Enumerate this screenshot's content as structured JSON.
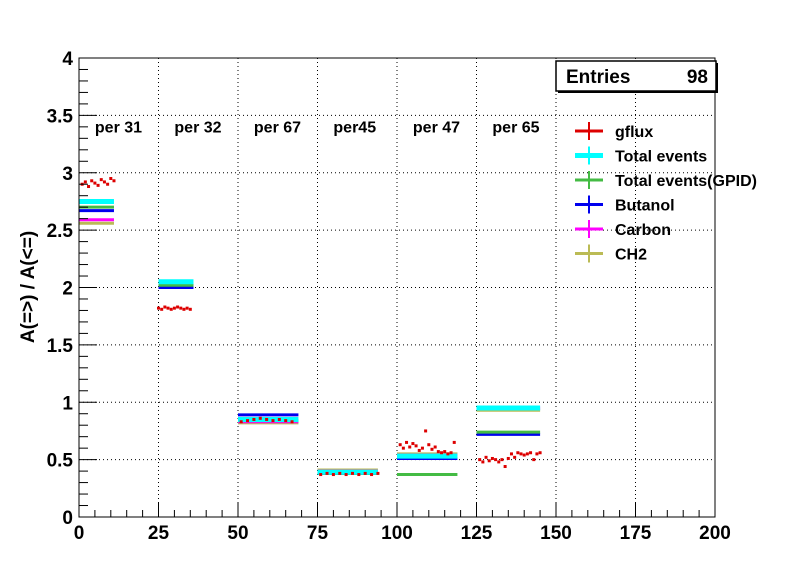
{
  "chart_data": {
    "type": "scatter",
    "ylabel": "A(=>) / A(<=)",
    "xlim": [
      0,
      200
    ],
    "ylim": [
      0,
      4
    ],
    "x_ticks": [
      "0",
      "25",
      "50",
      "75",
      "100",
      "125",
      "150",
      "175",
      "200"
    ],
    "y_ticks": [
      "0",
      "0.5",
      "1",
      "1.5",
      "2",
      "2.5",
      "3",
      "3.5",
      "4"
    ],
    "grid": true,
    "stats_box": {
      "label": "Entries",
      "value": "98"
    },
    "period_labels": [
      {
        "text": "per 31",
        "x": 5
      },
      {
        "text": "per 32",
        "x": 30
      },
      {
        "text": "per 67",
        "x": 55
      },
      {
        "text": "per45",
        "x": 80
      },
      {
        "text": "per 47",
        "x": 105
      },
      {
        "text": "per 65",
        "x": 130
      }
    ],
    "legend_placement": "right",
    "series": [
      {
        "name": "gflux",
        "color": "#dd0000",
        "kind": "points",
        "points": [
          [
            1,
            2.9
          ],
          [
            2,
            2.92
          ],
          [
            3,
            2.88
          ],
          [
            4,
            2.93
          ],
          [
            5,
            2.91
          ],
          [
            6,
            2.89
          ],
          [
            7,
            2.94
          ],
          [
            8,
            2.92
          ],
          [
            9,
            2.9
          ],
          [
            10,
            2.95
          ],
          [
            11,
            2.93
          ],
          [
            25,
            1.82
          ],
          [
            26,
            1.81
          ],
          [
            27,
            1.83
          ],
          [
            28,
            1.82
          ],
          [
            29,
            1.81
          ],
          [
            30,
            1.82
          ],
          [
            31,
            1.83
          ],
          [
            32,
            1.82
          ],
          [
            33,
            1.81
          ],
          [
            34,
            1.82
          ],
          [
            35,
            1.81
          ],
          [
            51,
            0.83
          ],
          [
            53,
            0.84
          ],
          [
            55,
            0.85
          ],
          [
            57,
            0.86
          ],
          [
            59,
            0.85
          ],
          [
            61,
            0.84
          ],
          [
            63,
            0.85
          ],
          [
            65,
            0.84
          ],
          [
            67,
            0.83
          ],
          [
            76,
            0.37
          ],
          [
            78,
            0.38
          ],
          [
            80,
            0.37
          ],
          [
            82,
            0.38
          ],
          [
            84,
            0.37
          ],
          [
            86,
            0.38
          ],
          [
            88,
            0.37
          ],
          [
            90,
            0.38
          ],
          [
            92,
            0.37
          ],
          [
            94,
            0.38
          ],
          [
            101,
            0.63
          ],
          [
            102,
            0.6
          ],
          [
            103,
            0.65
          ],
          [
            104,
            0.61
          ],
          [
            105,
            0.64
          ],
          [
            106,
            0.62
          ],
          [
            107,
            0.58
          ],
          [
            108,
            0.6
          ],
          [
            109,
            0.75
          ],
          [
            110,
            0.63
          ],
          [
            111,
            0.59
          ],
          [
            112,
            0.61
          ],
          [
            113,
            0.57
          ],
          [
            114,
            0.56
          ],
          [
            115,
            0.57
          ],
          [
            116,
            0.55
          ],
          [
            117,
            0.56
          ],
          [
            118,
            0.65
          ],
          [
            126,
            0.5
          ],
          [
            127,
            0.48
          ],
          [
            128,
            0.52
          ],
          [
            129,
            0.49
          ],
          [
            130,
            0.51
          ],
          [
            131,
            0.5
          ],
          [
            132,
            0.48
          ],
          [
            133,
            0.5
          ],
          [
            134,
            0.44
          ],
          [
            135,
            0.51
          ],
          [
            136,
            0.55
          ],
          [
            137,
            0.52
          ],
          [
            138,
            0.56
          ],
          [
            139,
            0.55
          ],
          [
            140,
            0.54
          ],
          [
            141,
            0.55
          ],
          [
            142,
            0.56
          ],
          [
            143,
            0.5
          ],
          [
            144,
            0.55
          ],
          [
            145,
            0.56
          ]
        ]
      },
      {
        "name": "Total events",
        "color": "#00ffff",
        "kind": "lines",
        "segments": [
          [
            0,
            11,
            2.75
          ],
          [
            25,
            36,
            2.05
          ],
          [
            50,
            69,
            0.85
          ],
          [
            75,
            94,
            0.39
          ],
          [
            100,
            119,
            0.53
          ],
          [
            125,
            145,
            0.95
          ]
        ]
      },
      {
        "name": "Total events(GPID)",
        "color": "#44bb44",
        "kind": "lines",
        "segments": [
          [
            0,
            11,
            2.7
          ],
          [
            25,
            36,
            2.02
          ],
          [
            50,
            69,
            0.84
          ],
          [
            75,
            94,
            0.38
          ],
          [
            100,
            119,
            0.37
          ],
          [
            125,
            145,
            0.74
          ]
        ]
      },
      {
        "name": "Butanol",
        "color": "#0000ee",
        "kind": "lines",
        "segments": [
          [
            0,
            11,
            2.67
          ],
          [
            25,
            36,
            2.0
          ],
          [
            50,
            69,
            0.89
          ],
          [
            75,
            94,
            0.38
          ],
          [
            100,
            119,
            0.51
          ],
          [
            125,
            145,
            0.72
          ]
        ]
      },
      {
        "name": "Carbon",
        "color": "#ff00ff",
        "kind": "lines",
        "segments": [
          [
            0,
            11,
            2.59
          ],
          [
            25,
            36,
            2.02
          ],
          [
            50,
            69,
            0.83
          ],
          [
            75,
            94,
            0.4
          ],
          [
            100,
            119,
            0.54
          ],
          [
            125,
            145,
            0.95
          ]
        ]
      },
      {
        "name": "CH2",
        "color": "#bbbb55",
        "kind": "lines",
        "segments": [
          [
            0,
            11,
            2.56
          ],
          [
            25,
            36,
            2.01
          ],
          [
            50,
            69,
            0.82
          ],
          [
            75,
            94,
            0.41
          ],
          [
            100,
            119,
            0.55
          ],
          [
            125,
            145,
            0.93
          ]
        ]
      }
    ]
  }
}
